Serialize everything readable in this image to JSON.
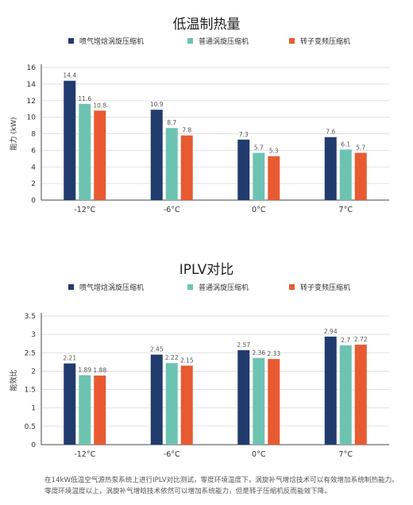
{
  "colors": {
    "series": [
      "#213b6e",
      "#6dc3b1",
      "#e85a32"
    ],
    "grid": "#d9d9d9",
    "axis": "#444444",
    "text": "#333333"
  },
  "chart_data": [
    {
      "type": "bar",
      "title": "低温制热量",
      "ylabel": "能力 (kW)",
      "xlabel": "",
      "ylim": [
        0,
        16
      ],
      "yticks": [
        "0",
        "2",
        "4",
        "6",
        "8",
        "10",
        "12",
        "14",
        "16"
      ],
      "categories": [
        "-12°C",
        "-6°C",
        "0°C",
        "7°C"
      ],
      "grid": true,
      "legend_position": "top",
      "series": [
        {
          "name": "喷气增焓涡旋压缩机",
          "values": [
            14.4,
            10.9,
            7.3,
            7.6
          ],
          "labels": [
            "14.4",
            "10.9",
            "7.3",
            "7.6"
          ]
        },
        {
          "name": "普通涡旋压缩机",
          "values": [
            11.6,
            8.7,
            5.7,
            6.1
          ],
          "labels": [
            "11.6",
            "8.7",
            "5.7",
            "6.1"
          ]
        },
        {
          "name": "转子变频压缩机",
          "values": [
            10.8,
            7.8,
            5.3,
            5.7
          ],
          "labels": [
            "10.8",
            "7.8",
            "5.3",
            "5.7"
          ]
        }
      ]
    },
    {
      "type": "bar",
      "title": "IPLV对比",
      "ylabel": "能效比",
      "xlabel": "",
      "ylim": [
        0,
        3.5
      ],
      "yticks": [
        "0",
        "0.5",
        "1",
        "1.5",
        "2",
        "2.5",
        "3",
        "3.5"
      ],
      "categories": [
        "-12°C",
        "-6°C",
        "0°C",
        "7°C"
      ],
      "grid": true,
      "legend_position": "top",
      "series": [
        {
          "name": "喷气增焓涡旋压缩机",
          "values": [
            2.21,
            2.45,
            2.57,
            2.94
          ],
          "labels": [
            "2.21",
            "2.45",
            "2.57",
            "2.94"
          ]
        },
        {
          "name": "普通涡旋压缩机",
          "values": [
            1.89,
            2.22,
            2.36,
            2.7
          ],
          "labels": [
            "1.89",
            "2.22",
            "2.36",
            "2.7"
          ]
        },
        {
          "name": "转子变频压缩机",
          "values": [
            1.88,
            2.15,
            2.33,
            2.72
          ],
          "labels": [
            "1.88",
            "2.15",
            "2.33",
            "2.72"
          ]
        }
      ]
    }
  ],
  "footnote": {
    "line1": "在14kW低温空气源热泵系统上进行IPLV对比测试，零度环境温度下，涡旋补气增焓技术可以有效增加系统制热能力。",
    "line2": "零度环境温度以上，涡旋补气增晗技术依然可以增加系统能力，但是转子压缩机反而能效下降。"
  }
}
